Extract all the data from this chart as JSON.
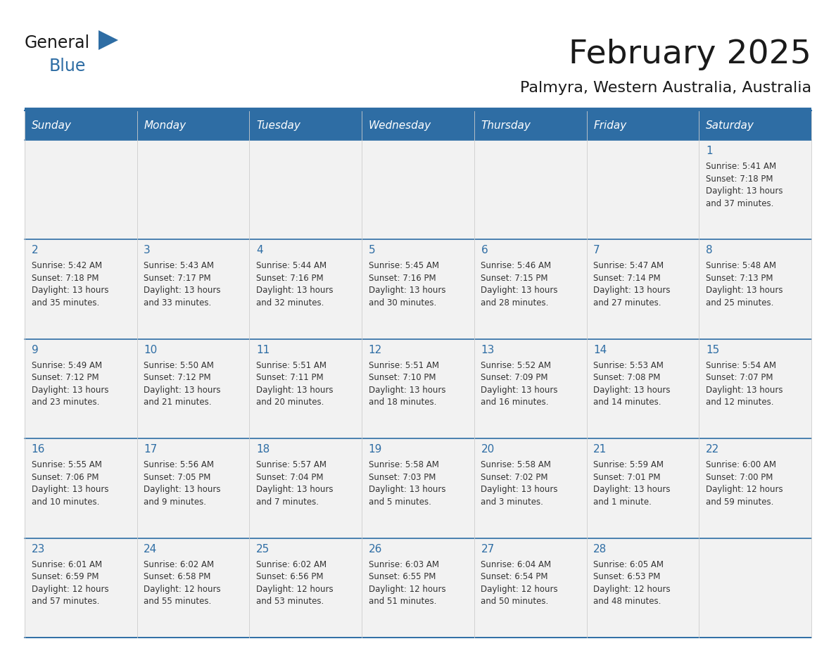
{
  "title": "February 2025",
  "subtitle": "Palmyra, Western Australia, Australia",
  "days_of_week": [
    "Sunday",
    "Monday",
    "Tuesday",
    "Wednesday",
    "Thursday",
    "Friday",
    "Saturday"
  ],
  "header_bg": "#2E6DA4",
  "header_text": "#FFFFFF",
  "cell_bg": "#F2F2F2",
  "border_color": "#2E6DA4",
  "cell_border_color": "#BBBBBB",
  "day_number_color": "#2E6DA4",
  "info_color": "#333333",
  "title_color": "#1a1a1a",
  "subtitle_color": "#1a1a1a",
  "header_fontsize": 11,
  "day_number_fontsize": 11,
  "info_fontsize": 8.5,
  "calendar": [
    [
      null,
      null,
      null,
      null,
      null,
      null,
      {
        "day": 1,
        "sunrise": "5:41 AM",
        "sunset": "7:18 PM",
        "daylight_line1": "Daylight: 13 hours",
        "daylight_line2": "and 37 minutes."
      }
    ],
    [
      {
        "day": 2,
        "sunrise": "5:42 AM",
        "sunset": "7:18 PM",
        "daylight_line1": "Daylight: 13 hours",
        "daylight_line2": "and 35 minutes."
      },
      {
        "day": 3,
        "sunrise": "5:43 AM",
        "sunset": "7:17 PM",
        "daylight_line1": "Daylight: 13 hours",
        "daylight_line2": "and 33 minutes."
      },
      {
        "day": 4,
        "sunrise": "5:44 AM",
        "sunset": "7:16 PM",
        "daylight_line1": "Daylight: 13 hours",
        "daylight_line2": "and 32 minutes."
      },
      {
        "day": 5,
        "sunrise": "5:45 AM",
        "sunset": "7:16 PM",
        "daylight_line1": "Daylight: 13 hours",
        "daylight_line2": "and 30 minutes."
      },
      {
        "day": 6,
        "sunrise": "5:46 AM",
        "sunset": "7:15 PM",
        "daylight_line1": "Daylight: 13 hours",
        "daylight_line2": "and 28 minutes."
      },
      {
        "day": 7,
        "sunrise": "5:47 AM",
        "sunset": "7:14 PM",
        "daylight_line1": "Daylight: 13 hours",
        "daylight_line2": "and 27 minutes."
      },
      {
        "day": 8,
        "sunrise": "5:48 AM",
        "sunset": "7:13 PM",
        "daylight_line1": "Daylight: 13 hours",
        "daylight_line2": "and 25 minutes."
      }
    ],
    [
      {
        "day": 9,
        "sunrise": "5:49 AM",
        "sunset": "7:12 PM",
        "daylight_line1": "Daylight: 13 hours",
        "daylight_line2": "and 23 minutes."
      },
      {
        "day": 10,
        "sunrise": "5:50 AM",
        "sunset": "7:12 PM",
        "daylight_line1": "Daylight: 13 hours",
        "daylight_line2": "and 21 minutes."
      },
      {
        "day": 11,
        "sunrise": "5:51 AM",
        "sunset": "7:11 PM",
        "daylight_line1": "Daylight: 13 hours",
        "daylight_line2": "and 20 minutes."
      },
      {
        "day": 12,
        "sunrise": "5:51 AM",
        "sunset": "7:10 PM",
        "daylight_line1": "Daylight: 13 hours",
        "daylight_line2": "and 18 minutes."
      },
      {
        "day": 13,
        "sunrise": "5:52 AM",
        "sunset": "7:09 PM",
        "daylight_line1": "Daylight: 13 hours",
        "daylight_line2": "and 16 minutes."
      },
      {
        "day": 14,
        "sunrise": "5:53 AM",
        "sunset": "7:08 PM",
        "daylight_line1": "Daylight: 13 hours",
        "daylight_line2": "and 14 minutes."
      },
      {
        "day": 15,
        "sunrise": "5:54 AM",
        "sunset": "7:07 PM",
        "daylight_line1": "Daylight: 13 hours",
        "daylight_line2": "and 12 minutes."
      }
    ],
    [
      {
        "day": 16,
        "sunrise": "5:55 AM",
        "sunset": "7:06 PM",
        "daylight_line1": "Daylight: 13 hours",
        "daylight_line2": "and 10 minutes."
      },
      {
        "day": 17,
        "sunrise": "5:56 AM",
        "sunset": "7:05 PM",
        "daylight_line1": "Daylight: 13 hours",
        "daylight_line2": "and 9 minutes."
      },
      {
        "day": 18,
        "sunrise": "5:57 AM",
        "sunset": "7:04 PM",
        "daylight_line1": "Daylight: 13 hours",
        "daylight_line2": "and 7 minutes."
      },
      {
        "day": 19,
        "sunrise": "5:58 AM",
        "sunset": "7:03 PM",
        "daylight_line1": "Daylight: 13 hours",
        "daylight_line2": "and 5 minutes."
      },
      {
        "day": 20,
        "sunrise": "5:58 AM",
        "sunset": "7:02 PM",
        "daylight_line1": "Daylight: 13 hours",
        "daylight_line2": "and 3 minutes."
      },
      {
        "day": 21,
        "sunrise": "5:59 AM",
        "sunset": "7:01 PM",
        "daylight_line1": "Daylight: 13 hours",
        "daylight_line2": "and 1 minute."
      },
      {
        "day": 22,
        "sunrise": "6:00 AM",
        "sunset": "7:00 PM",
        "daylight_line1": "Daylight: 12 hours",
        "daylight_line2": "and 59 minutes."
      }
    ],
    [
      {
        "day": 23,
        "sunrise": "6:01 AM",
        "sunset": "6:59 PM",
        "daylight_line1": "Daylight: 12 hours",
        "daylight_line2": "and 57 minutes."
      },
      {
        "day": 24,
        "sunrise": "6:02 AM",
        "sunset": "6:58 PM",
        "daylight_line1": "Daylight: 12 hours",
        "daylight_line2": "and 55 minutes."
      },
      {
        "day": 25,
        "sunrise": "6:02 AM",
        "sunset": "6:56 PM",
        "daylight_line1": "Daylight: 12 hours",
        "daylight_line2": "and 53 minutes."
      },
      {
        "day": 26,
        "sunrise": "6:03 AM",
        "sunset": "6:55 PM",
        "daylight_line1": "Daylight: 12 hours",
        "daylight_line2": "and 51 minutes."
      },
      {
        "day": 27,
        "sunrise": "6:04 AM",
        "sunset": "6:54 PM",
        "daylight_line1": "Daylight: 12 hours",
        "daylight_line2": "and 50 minutes."
      },
      {
        "day": 28,
        "sunrise": "6:05 AM",
        "sunset": "6:53 PM",
        "daylight_line1": "Daylight: 12 hours",
        "daylight_line2": "and 48 minutes."
      },
      null
    ]
  ]
}
